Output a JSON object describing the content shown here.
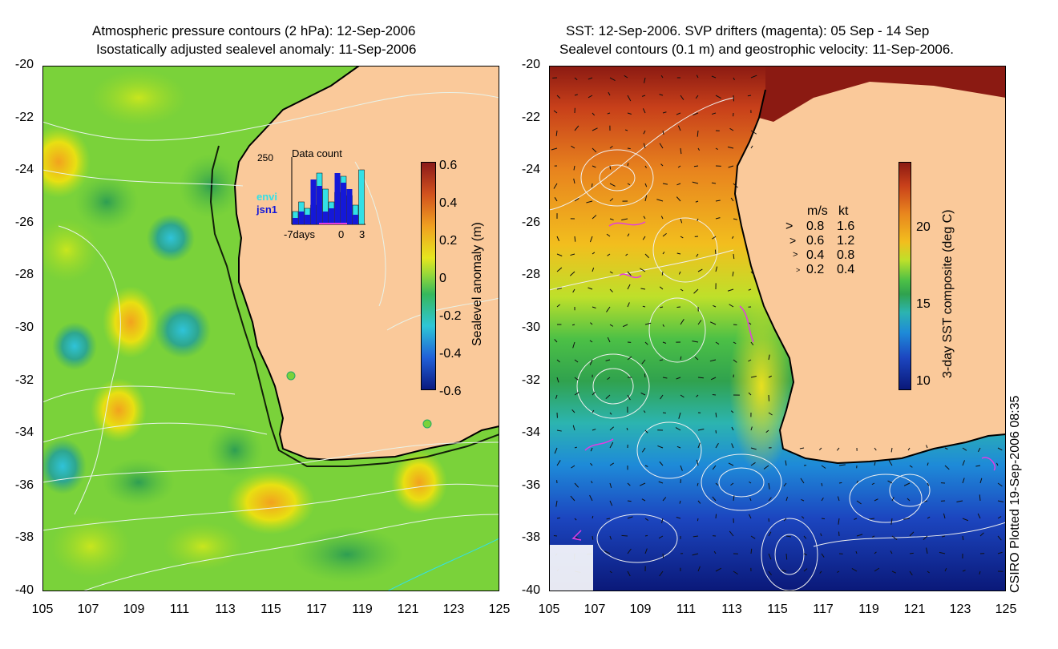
{
  "left_panel": {
    "title_line1": "Atmospheric pressure contours (2 hPa): 12-Sep-2006",
    "title_line2": "Isostatically adjusted sealevel anomaly: 11-Sep-2006",
    "colorbar_label": "Sealevel anomaly (m)",
    "colorbar_ticks": [
      "0.6",
      "0.4",
      "0.2",
      "0",
      "-0.2",
      "-0.4",
      "-0.6"
    ],
    "inset": {
      "title": "Data count",
      "ymax_label": "250",
      "xlabel_left": "-7days",
      "xlabel_mid": "0",
      "xlabel_right": "3",
      "legend_envi": "envi",
      "legend_jsn1": "jsn1",
      "envi_counts": [
        0.2,
        0.35,
        0.25,
        0.3,
        0.8,
        0.55,
        0.35,
        0.5,
        0.75,
        0.45,
        0.3,
        0.85
      ],
      "jsn1_counts": [
        0.1,
        0.2,
        0.15,
        0.7,
        0.6,
        0.2,
        0.25,
        0.8,
        0.65,
        0.55,
        0.15,
        0.0
      ]
    }
  },
  "right_panel": {
    "title_line1": "SST: 12-Sep-2006. SVP drifters (magenta): 05 Sep - 14 Sep",
    "title_line2": "Sealevel contours (0.1 m) and geostrophic velocity: 11-Sep-2006.",
    "colorbar_label": "3-day SST composite (deg C)",
    "colorbar_ticks": [
      "20",
      "15",
      "10"
    ],
    "velocity_legend": {
      "header_ms": "m/s",
      "header_kt": "kt",
      "rows": [
        {
          "ms": "0.8",
          "kt": "1.6"
        },
        {
          "ms": "0.6",
          "kt": "1.2"
        },
        {
          "ms": "0.4",
          "kt": "0.8"
        },
        {
          "ms": "0.2",
          "kt": "0.4"
        }
      ]
    }
  },
  "axes": {
    "y_ticks": [
      "-20",
      "-22",
      "-24",
      "-26",
      "-28",
      "-30",
      "-32",
      "-34",
      "-36",
      "-38",
      "-40"
    ],
    "x_ticks": [
      "105",
      "107",
      "109",
      "111",
      "113",
      "115",
      "117",
      "119",
      "121",
      "123",
      "125"
    ]
  },
  "credit": "CSIRO Plotted 19-Sep-2006 08:35",
  "colors": {
    "land": "#FAC99A",
    "ocean_green": "#7AD23A",
    "coast_line": "#000000",
    "envi": "#33E0E6",
    "jsn1": "#1418D8",
    "drifter": "#E23CE2"
  }
}
